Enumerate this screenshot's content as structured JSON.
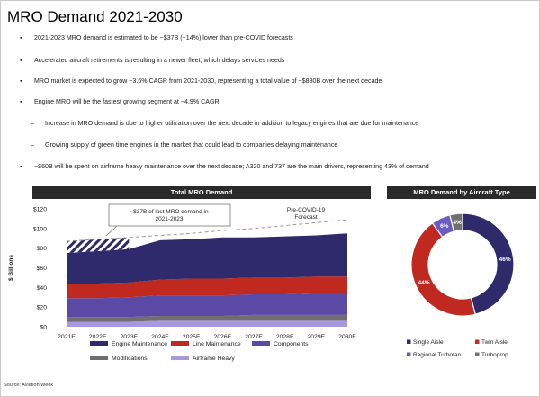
{
  "title": "MRO Demand 2021-2030",
  "bullets": [
    {
      "marker": "▪",
      "text": "2021-2023 MRO demand is estimated to be ~$37B (~14%) lower than pre-COVID forecasts"
    },
    {
      "marker": "▪",
      "text": "Accelerated aircraft retirements is resulting in a newer fleet, which delays services needs"
    },
    {
      "marker": "▪",
      "text": "MRO market is expected to grow ~3.6% CAGR from 2021-2030,  representing a total value of ~$880B over the next decade"
    },
    {
      "marker": "▪",
      "text": "Engine MRO will be the fastest growing segment at ~4.9% CAGR"
    },
    {
      "marker": "–",
      "text": "Increase in MRO demand is due to higher utilization over the next decade in addition to legacy engines that are due for maintenance"
    },
    {
      "marker": "–",
      "text": "Growing supply of green time engines in the market that could lead to companies delaying maintenance"
    },
    {
      "marker": "▪",
      "text": "~$60B will be spent on airframe heavy maintenance over the next decade; A320 and 737 are the main drivers, representing 43% of demand"
    }
  ],
  "source": "Source: Aviation Week",
  "colors": {
    "engine": "#2e2a6b",
    "line": "#c0291f",
    "components": "#5a4aa6",
    "modifications": "#6f6f6f",
    "airframe": "#a898e0",
    "header": "#2a2a2a"
  },
  "chart_data": [
    {
      "type": "area",
      "title": "Total MRO Demand",
      "ylabel": "$ Billions",
      "ylim": [
        0,
        120
      ],
      "yticks": [
        "$0",
        "$20",
        "$40",
        "$60",
        "$80",
        "$100",
        "$120"
      ],
      "categories": [
        "2021E",
        "2022E",
        "2023E",
        "2024E",
        "2025E",
        "2026E",
        "2027E",
        "2028E",
        "2029E",
        "2030E"
      ],
      "stacked": true,
      "series": [
        {
          "name": "Airframe Heavy",
          "values": [
            5,
            5,
            5,
            6,
            6,
            6,
            6,
            6,
            6,
            6
          ]
        },
        {
          "name": "Modifications",
          "values": [
            5,
            5,
            5,
            5,
            5,
            5,
            6,
            6,
            6,
            6
          ]
        },
        {
          "name": "Components",
          "values": [
            19,
            19,
            20,
            21,
            21,
            21,
            21,
            21,
            22,
            22
          ]
        },
        {
          "name": "Line Maintenance",
          "values": [
            14,
            15,
            15,
            16,
            17,
            17,
            17,
            17,
            17,
            17
          ]
        },
        {
          "name": "Engine Maintenance",
          "values": [
            32,
            33,
            34,
            40,
            40,
            42,
            41,
            42,
            42,
            44
          ]
        }
      ],
      "forecast_line": {
        "name": "Pre-COVID-19 Forecast",
        "values": [
          87,
          89,
          91,
          93,
          95,
          98,
          100,
          103,
          106,
          109
        ]
      },
      "annotations": [
        "~$37B of lost MRO demand in 2021-2023",
        "Pre-COVID-19 Forecast"
      ],
      "legend": "bottom"
    },
    {
      "type": "pie",
      "donut": true,
      "title": "MRO Demand by Aircraft Type",
      "slices": [
        {
          "name": "Single Aisle",
          "value": 46,
          "label": "46%"
        },
        {
          "name": "Twin Aisle",
          "value": 44,
          "label": "44%"
        },
        {
          "name": "Regional Turbofan",
          "value": 6,
          "label": "6%"
        },
        {
          "name": "Turboprop",
          "value": 4,
          "label": "4%"
        }
      ],
      "slice_colors": [
        "#2e2a6b",
        "#c0291f",
        "#6a5cc0",
        "#707070"
      ],
      "legend": "bottom"
    }
  ]
}
